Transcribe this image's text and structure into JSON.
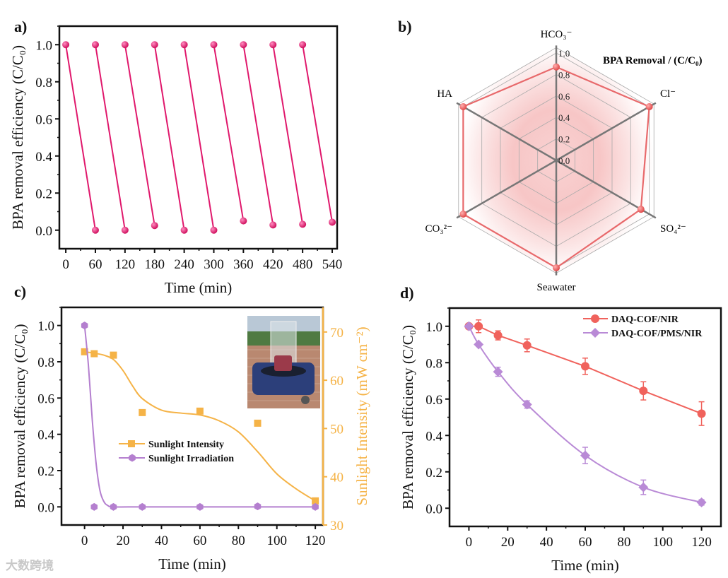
{
  "watermark": "大数跨境",
  "colors": {
    "a": "#e0186c",
    "radar": "#e8696b",
    "intensity": "#f5b347",
    "irradiation": "#b47fcf",
    "nir": "#f0625c",
    "pms": "#b98ad6",
    "axis": "#111111"
  },
  "chart_data": [
    {
      "panel": "a)",
      "type": "line",
      "xlabel": "Time (min)",
      "ylabel": "BPA removal efficiency (C/C₀)",
      "xlim": [
        -13,
        550
      ],
      "ylim": [
        -0.1,
        1.1
      ],
      "xticks": [
        "0",
        "60",
        "120",
        "180",
        "240",
        "300",
        "360",
        "420",
        "480",
        "540"
      ],
      "yticks": [
        "0.0",
        "0.2",
        "0.4",
        "0.6",
        "0.8",
        "1.0"
      ],
      "cycles": [
        {
          "t0": 0,
          "c0": 1.0,
          "t1": 60,
          "c1": 0.0
        },
        {
          "t0": 60,
          "c0": 1.0,
          "t1": 120,
          "c1": 0.0
        },
        {
          "t0": 120,
          "c0": 1.0,
          "t1": 180,
          "c1": 0.025
        },
        {
          "t0": 180,
          "c0": 1.0,
          "t1": 240,
          "c1": 0.0
        },
        {
          "t0": 240,
          "c0": 1.0,
          "t1": 300,
          "c1": 0.0
        },
        {
          "t0": 300,
          "c0": 1.0,
          "t1": 360,
          "c1": 0.05
        },
        {
          "t0": 360,
          "c0": 1.0,
          "t1": 420,
          "c1": 0.028
        },
        {
          "t0": 420,
          "c0": 1.0,
          "t1": 480,
          "c1": 0.032
        },
        {
          "t0": 480,
          "c0": 1.0,
          "t1": 540,
          "c1": 0.043
        }
      ]
    },
    {
      "panel": "b)",
      "type": "radar",
      "title": "BPA Removal / (C/C₀)",
      "axes": [
        "HCO₃⁻",
        "Cl⁻",
        "SO₄²⁻",
        "Seawater",
        "CO₃²⁻",
        "HA"
      ],
      "values": [
        0.87,
        1.0,
        0.91,
        1.0,
        1.0,
        1.0
      ],
      "rticks": [
        "0.0",
        "0.2",
        "0.4",
        "0.6",
        "0.8",
        "1.0"
      ],
      "rmax": 1.0
    },
    {
      "panel": "c)",
      "type": "line",
      "xlabel": "Time (min)",
      "ylabel": "BPA removal efficiency (C/C₀)",
      "ylabel_right": "Sunlight Intensity (mW cm⁻²)",
      "xlim": [
        -12,
        124
      ],
      "ylim": [
        -0.1,
        1.1
      ],
      "ylim_right": [
        30,
        75.1
      ],
      "xticks": [
        "0",
        "20",
        "40",
        "60",
        "80",
        "100",
        "120"
      ],
      "yticks": [
        "0.0",
        "0.2",
        "0.4",
        "0.6",
        "0.8",
        "1.0"
      ],
      "yticks_right": [
        "30",
        "40",
        "50",
        "60",
        "70"
      ],
      "legend": [
        "Sunlight Intensity",
        "Sunlight Irradiation"
      ],
      "series": [
        {
          "name": "Sunlight Intensity",
          "axis": "right",
          "marker": "square",
          "x": [
            0,
            5,
            15,
            30,
            60,
            90,
            120
          ],
          "y": [
            65.9,
            65.5,
            65.2,
            53.3,
            53.6,
            51.1,
            35.0
          ],
          "fit_x": [
            0,
            5,
            10,
            15,
            20,
            25,
            30,
            40,
            50,
            60,
            70,
            80,
            90,
            100,
            110,
            120
          ],
          "fit_y": [
            65.9,
            65.6,
            65.2,
            64.3,
            62.0,
            58.8,
            56.2,
            53.8,
            53.2,
            52.8,
            51.6,
            49.3,
            45.2,
            40.6,
            37.5,
            35.0
          ]
        },
        {
          "name": "Sunlight Irradiation",
          "axis": "left",
          "marker": "hexagon",
          "x": [
            0,
            5,
            15,
            30,
            60,
            90,
            120
          ],
          "y": [
            1.0,
            0.0,
            0.0,
            0.0,
            0.0,
            0.003,
            0.0
          ],
          "fit_x": [
            0,
            2,
            4,
            6,
            8,
            10,
            12,
            15,
            30,
            60,
            90,
            120
          ],
          "fit_y": [
            1.0,
            0.78,
            0.48,
            0.24,
            0.09,
            0.03,
            0.008,
            0.0,
            0.0,
            0.0,
            0.0,
            0.0
          ]
        }
      ]
    },
    {
      "panel": "d)",
      "type": "line",
      "xlabel": "Time (min)",
      "ylabel": "BPA removal efficiency (C/C₀)",
      "xlim": [
        -10,
        130
      ],
      "ylim": [
        -0.1,
        1.1
      ],
      "xticks": [
        "0",
        "20",
        "40",
        "60",
        "80",
        "100",
        "120"
      ],
      "yticks": [
        "0.0",
        "0.2",
        "0.4",
        "0.6",
        "0.8",
        "1.0"
      ],
      "legend": [
        "DAQ-COF/NIR",
        "DAQ-COF/PMS/NIR"
      ],
      "series": [
        {
          "name": "DAQ-COF/NIR",
          "marker": "circle",
          "x": [
            0,
            5,
            15,
            30,
            60,
            90,
            120
          ],
          "y": [
            1.0,
            1.0,
            0.95,
            0.895,
            0.78,
            0.645,
            0.52
          ],
          "err": [
            0.0,
            0.035,
            0.025,
            0.035,
            0.045,
            0.05,
            0.065
          ]
        },
        {
          "name": "DAQ-COF/PMS/NIR",
          "marker": "diamond",
          "x": [
            0,
            5,
            15,
            30,
            60,
            90,
            120
          ],
          "y": [
            1.0,
            0.9,
            0.75,
            0.57,
            0.29,
            0.115,
            0.032
          ],
          "err": [
            0.0,
            0.01,
            0.025,
            0.02,
            0.045,
            0.04,
            0.015
          ]
        }
      ]
    }
  ]
}
